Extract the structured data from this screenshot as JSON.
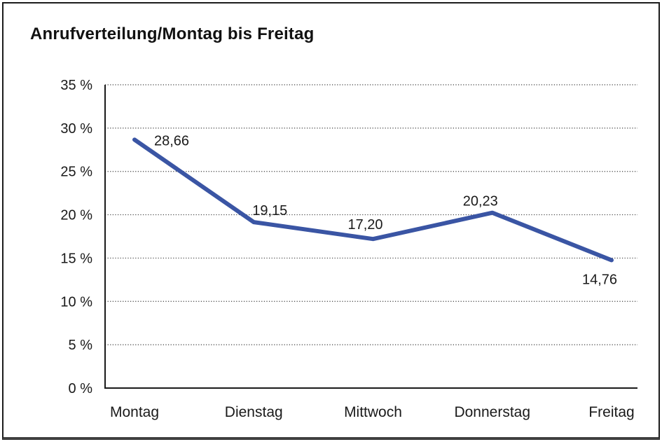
{
  "window": {
    "background": "#ffffff",
    "frame_border_color": "#1c1c1c"
  },
  "chart_data": {
    "type": "line",
    "title": "Anrufverteilung/Montag bis Freitag",
    "categories": [
      "Montag",
      "Dienstag",
      "Mittwoch",
      "Donnerstag",
      "Freitag"
    ],
    "series": [
      {
        "name": "Anrufverteilung",
        "values": [
          28.66,
          19.15,
          17.2,
          20.23,
          14.76
        ],
        "color": "#3a55a4",
        "line_width": 6
      }
    ],
    "value_labels": [
      "28,66",
      "19,15",
      "17,20",
      "20,23",
      "14,76"
    ],
    "xlabel": "",
    "ylabel": "",
    "y_axis": {
      "min": 0,
      "max": 35,
      "step": 5,
      "tick_labels": [
        "0 %",
        "5 %",
        "10 %",
        "15 %",
        "20 %",
        "25 %",
        "30 %",
        "35 %"
      ]
    },
    "grid": "horizontal-dotted",
    "grid_color": "#3c3c3c",
    "axis_color": "#1a1a1a",
    "legend": "none"
  }
}
